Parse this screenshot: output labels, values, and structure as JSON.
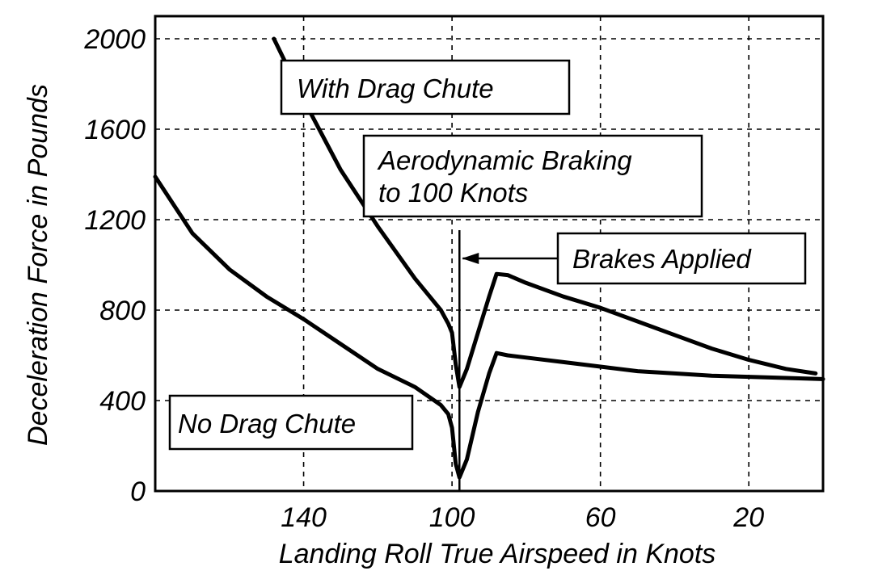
{
  "chart_data": {
    "type": "line",
    "title": "",
    "xlabel": "Landing Roll True Airspeed in Knots",
    "ylabel": "Deceleration Force in Pounds",
    "x_reversed": true,
    "xlim": [
      180,
      0
    ],
    "ylim": [
      0,
      2100
    ],
    "x_ticks": [
      140,
      100,
      60,
      20
    ],
    "y_ticks": [
      0,
      400,
      800,
      1200,
      1600,
      2000
    ],
    "x_grid": [
      180,
      140,
      100,
      60,
      20,
      0
    ],
    "y_grid": [
      0,
      400,
      800,
      1200,
      1600,
      2000
    ],
    "grid": true,
    "series": [
      {
        "name": "With Drag Chute",
        "points": [
          [
            148,
            2000
          ],
          [
            140,
            1730
          ],
          [
            130,
            1420
          ],
          [
            120,
            1170
          ],
          [
            110,
            940
          ],
          [
            103,
            800
          ],
          [
            101,
            740
          ],
          [
            100,
            700
          ],
          [
            99,
            560
          ],
          [
            98,
            460
          ],
          [
            96,
            540
          ],
          [
            93,
            700
          ],
          [
            90,
            860
          ],
          [
            88,
            960
          ],
          [
            85,
            955
          ],
          [
            80,
            920
          ],
          [
            70,
            860
          ],
          [
            60,
            810
          ],
          [
            50,
            750
          ],
          [
            40,
            690
          ],
          [
            30,
            630
          ],
          [
            20,
            580
          ],
          [
            10,
            540
          ],
          [
            2,
            520
          ]
        ]
      },
      {
        "name": "No Drag Chute",
        "points": [
          [
            180,
            1390
          ],
          [
            170,
            1140
          ],
          [
            160,
            980
          ],
          [
            150,
            860
          ],
          [
            140,
            760
          ],
          [
            130,
            650
          ],
          [
            120,
            540
          ],
          [
            110,
            460
          ],
          [
            103,
            380
          ],
          [
            101,
            340
          ],
          [
            100,
            280
          ],
          [
            99,
            120
          ],
          [
            98,
            60
          ],
          [
            96,
            140
          ],
          [
            93,
            350
          ],
          [
            90,
            520
          ],
          [
            88,
            610
          ],
          [
            85,
            600
          ],
          [
            80,
            590
          ],
          [
            70,
            570
          ],
          [
            60,
            550
          ],
          [
            50,
            530
          ],
          [
            40,
            520
          ],
          [
            30,
            510
          ],
          [
            20,
            505
          ],
          [
            10,
            500
          ],
          [
            0,
            495
          ]
        ]
      }
    ],
    "annotations": [
      {
        "lines": [
          "With Drag Chute"
        ]
      },
      {
        "lines": [
          "Aerodynamic Braking",
          "to 100 Knots"
        ]
      },
      {
        "lines": [
          "Brakes Applied"
        ]
      },
      {
        "lines": [
          "No Drag Chute"
        ]
      }
    ],
    "marker_x": 98
  }
}
